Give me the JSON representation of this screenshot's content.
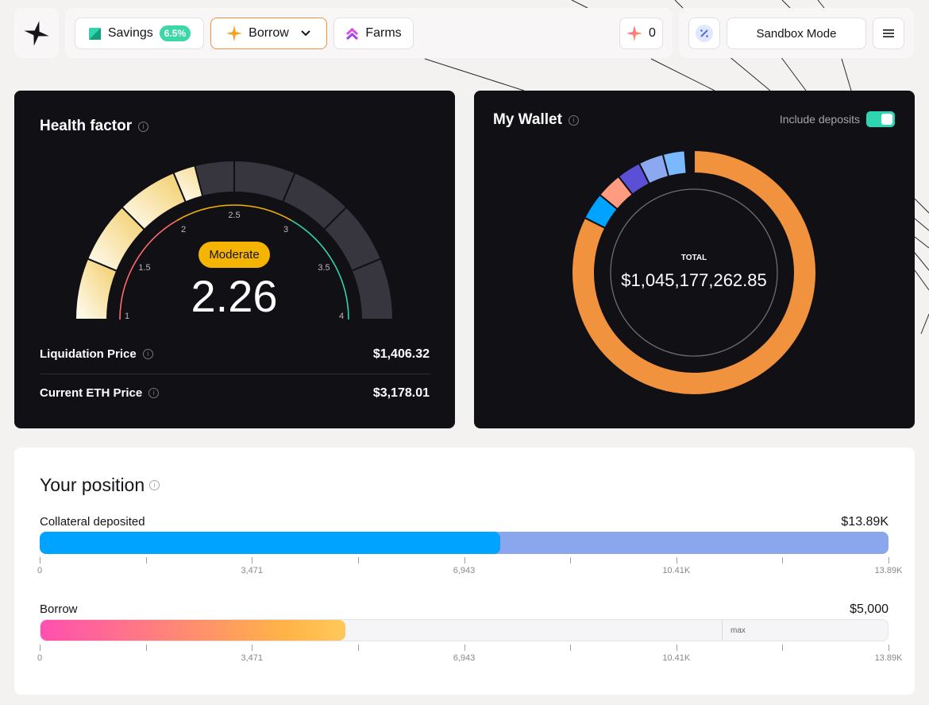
{
  "nav": {
    "savings_label": "Savings",
    "savings_rate": "6.5%",
    "borrow_label": "Borrow",
    "farms_label": "Farms",
    "points_count": "0",
    "sandbox_label": "Sandbox Mode"
  },
  "health": {
    "title": "Health factor",
    "status": "Moderate",
    "value": "2.26",
    "numeric_value": 2.26,
    "scale_labels": [
      "1",
      "1.5",
      "2",
      "2.5",
      "3",
      "3.5",
      "4"
    ],
    "liquidation_label": "Liquidation Price",
    "liquidation_value": "$1,406.32",
    "eth_label": "Current ETH Price",
    "eth_value": "$3,178.01"
  },
  "wallet": {
    "title": "My Wallet",
    "toggle_label": "Include deposits",
    "toggle_on": true,
    "total_label": "TOTAL",
    "total_value": "$1,045,177,262.85"
  },
  "colors": {
    "orange": "#f0923e",
    "blue": "#00a3ff",
    "salmon": "#ff9b80",
    "purple": "#5b4fd6",
    "lavender": "#8ca8f0",
    "sky": "#7ab8ff",
    "teal": "#2fd5b0",
    "red": "#ff6b6b",
    "gold": "#f4b400"
  },
  "position": {
    "title": "Your position",
    "collateral_label": "Collateral deposited",
    "collateral_value": "$13.89K",
    "collateral_fraction": 0.543,
    "borrow_label": "Borrow",
    "borrow_value": "$5,000",
    "borrow_fraction": 0.36,
    "max_label": "max",
    "ticks": [
      "0",
      "3,471",
      "6,943",
      "10.41K",
      "13.89K"
    ]
  }
}
